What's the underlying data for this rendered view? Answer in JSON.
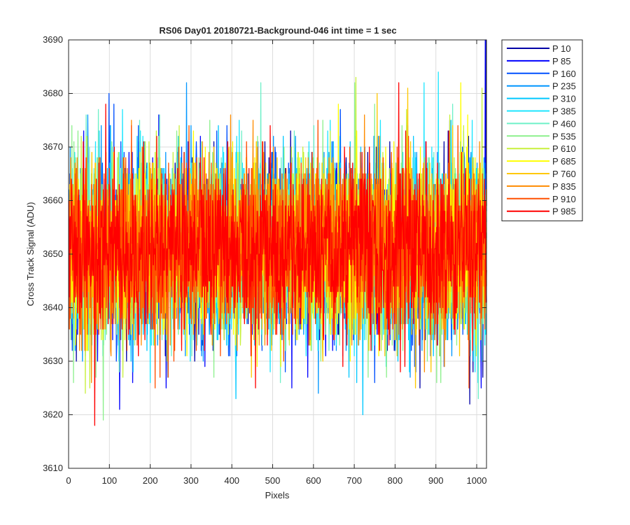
{
  "chart_data": {
    "type": "line",
    "title": "RS06 Day01 20180721-Background-046 int time = 1 sec",
    "xlabel": "Pixels",
    "ylabel": "Cross Track Signal (ADU)",
    "xlim": [
      0,
      1024
    ],
    "ylim": [
      3610,
      3690
    ],
    "xticks": [
      0,
      100,
      200,
      300,
      400,
      500,
      600,
      700,
      800,
      900,
      1000
    ],
    "yticks": [
      3610,
      3620,
      3630,
      3640,
      3650,
      3660,
      3670,
      3680,
      3690
    ],
    "grid": true,
    "legend_position": "outside-top-right",
    "num_points": 1024,
    "series": [
      {
        "name": "P 10",
        "color": "#0000a6",
        "mean": 3651,
        "std": 8.0,
        "spikes": [
          [
            1022,
            3690
          ],
          [
            780,
            3632
          ],
          [
            990,
            3628
          ]
        ]
      },
      {
        "name": "P 85",
        "color": "#0000ff",
        "mean": 3651,
        "std": 8.0,
        "spikes": [
          [
            124,
            3621
          ],
          [
            1010,
            3625
          ],
          [
            1020,
            3690
          ]
        ]
      },
      {
        "name": "P 160",
        "color": "#0050ff",
        "mean": 3651,
        "std": 8.0,
        "spikes": [
          [
            98,
            3680
          ],
          [
            530,
            3628
          ]
        ]
      },
      {
        "name": "P 235",
        "color": "#0096ff",
        "mean": 3651,
        "std": 8.0,
        "spikes": [
          [
            46,
            3676
          ],
          [
            288,
            3682
          ]
        ]
      },
      {
        "name": "P 310",
        "color": "#00c8ff",
        "mean": 3651,
        "std": 8.0,
        "spikes": [
          [
            720,
            3620
          ],
          [
            705,
            3626
          ],
          [
            1002,
            3626
          ]
        ]
      },
      {
        "name": "P 385",
        "color": "#1ee6ff",
        "mean": 3651,
        "std": 8.0,
        "spikes": [
          [
            905,
            3684
          ],
          [
            870,
            3682
          ]
        ]
      },
      {
        "name": "P 460",
        "color": "#6ef0c8",
        "mean": 3651,
        "std": 8.0,
        "spikes": [
          [
            470,
            3682
          ],
          [
            940,
            3678
          ]
        ]
      },
      {
        "name": "P 535",
        "color": "#8cf08c",
        "mean": 3651,
        "std": 8.0,
        "spikes": [
          [
            84,
            3619
          ],
          [
            700,
            3682
          ],
          [
            355,
            3627
          ]
        ]
      },
      {
        "name": "P 610",
        "color": "#c8f03c",
        "mean": 3651,
        "std": 8.0,
        "spikes": [
          [
            703,
            3683
          ],
          [
            1012,
            3681
          ],
          [
            40,
            3624
          ]
        ]
      },
      {
        "name": "P 685",
        "color": "#ffff00",
        "mean": 3651,
        "std": 8.0,
        "spikes": [
          [
            960,
            3682
          ],
          [
            660,
            3678
          ]
        ]
      },
      {
        "name": "P 760",
        "color": "#ffc800",
        "mean": 3651,
        "std": 8.0,
        "spikes": [
          [
            830,
            3681
          ],
          [
            755,
            3680
          ]
        ]
      },
      {
        "name": "P 835",
        "color": "#ff8c00",
        "mean": 3651,
        "std": 8.0,
        "spikes": [
          [
            55,
            3626
          ],
          [
            920,
            3629
          ]
        ]
      },
      {
        "name": "P 910",
        "color": "#ff5000",
        "mean": 3651,
        "std": 8.0,
        "spikes": [
          [
            980,
            3625
          ],
          [
            610,
            3675
          ]
        ]
      },
      {
        "name": "P 985",
        "color": "#ff0000",
        "mean": 3651,
        "std": 8.0,
        "spikes": [
          [
            63,
            3618
          ],
          [
            808,
            3682
          ],
          [
            35,
            3671
          ]
        ]
      }
    ]
  }
}
